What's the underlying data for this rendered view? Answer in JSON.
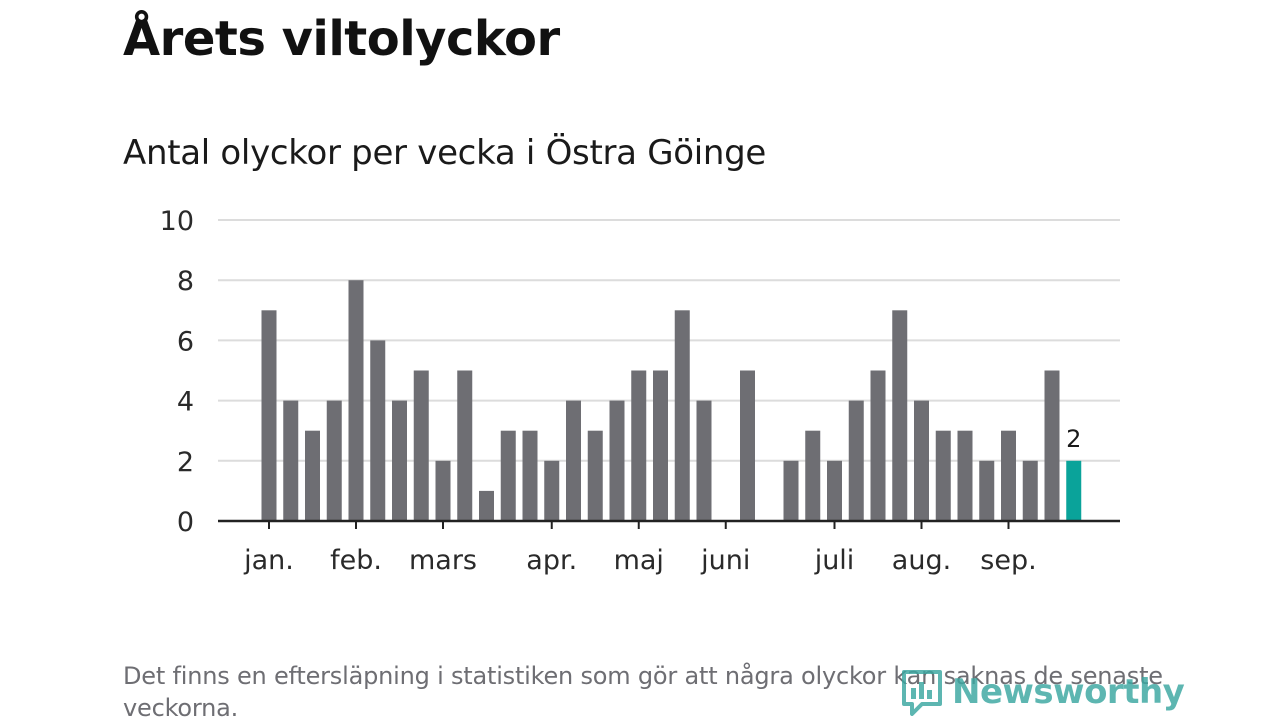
{
  "title": "Årets viltolyckor",
  "subtitle": "Antal olyckor per vecka i Östra Göinge",
  "footnote": "Det finns en eftersläpning i statistiken som gör att några olyckor kan saknas de senaste veckorna.",
  "logo_text": "Newsworthy",
  "colors": {
    "bar": "#6e6e73",
    "highlight": "#0aa39a",
    "grid": "#dcdcdc",
    "axis": "#222222",
    "logo": "#3aa7a1"
  },
  "chart_data": {
    "type": "bar",
    "title": "Antal olyckor per vecka i Östra Göinge",
    "xlabel": "",
    "ylabel": "",
    "ylim": [
      0,
      10
    ],
    "yticks": [
      0,
      2,
      4,
      6,
      8,
      10
    ],
    "grid": true,
    "values": [
      7,
      4,
      3,
      4,
      8,
      6,
      4,
      5,
      2,
      5,
      1,
      3,
      3,
      2,
      4,
      3,
      4,
      5,
      5,
      7,
      4,
      0,
      5,
      0,
      2,
      3,
      2,
      4,
      5,
      7,
      4,
      3,
      3,
      2,
      3,
      2,
      5,
      2
    ],
    "highlight_index": 37,
    "highlight_label": "2",
    "month_labels": [
      {
        "label": "jan.",
        "week": 1
      },
      {
        "label": "feb.",
        "week": 5
      },
      {
        "label": "mars",
        "week": 9
      },
      {
        "label": "apr.",
        "week": 14
      },
      {
        "label": "maj",
        "week": 18
      },
      {
        "label": "juni",
        "week": 22
      },
      {
        "label": "juli",
        "week": 27
      },
      {
        "label": "aug.",
        "week": 31
      },
      {
        "label": "sep.",
        "week": 35
      }
    ]
  }
}
